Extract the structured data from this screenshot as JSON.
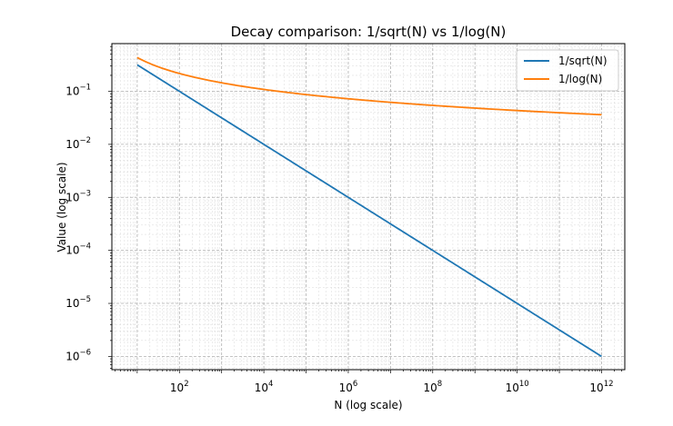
{
  "chart_data": {
    "type": "line",
    "title": "Decay comparison: 1/sqrt(N) vs 1/log(N)",
    "xlabel": "N (log scale)",
    "ylabel": "Value (log scale)",
    "xscale": "log",
    "yscale": "log",
    "xlim_exp": [
      0.4,
      12.55
    ],
    "ylim_exp": [
      -6.25,
      -0.1
    ],
    "x_ticks": [
      {
        "exp": 2,
        "base": "10",
        "sup": "2"
      },
      {
        "exp": 4,
        "base": "10",
        "sup": "4"
      },
      {
        "exp": 6,
        "base": "10",
        "sup": "6"
      },
      {
        "exp": 8,
        "base": "10",
        "sup": "8"
      },
      {
        "exp": 10,
        "base": "10",
        "sup": "10"
      },
      {
        "exp": 12,
        "base": "10",
        "sup": "12"
      }
    ],
    "y_ticks": [
      {
        "exp": -1,
        "base": "10",
        "sup": "−1"
      },
      {
        "exp": -2,
        "base": "10",
        "sup": "−2"
      },
      {
        "exp": -3,
        "base": "10",
        "sup": "−3"
      },
      {
        "exp": -4,
        "base": "10",
        "sup": "−4"
      },
      {
        "exp": -5,
        "base": "10",
        "sup": "−5"
      },
      {
        "exp": -6,
        "base": "10",
        "sup": "−6"
      }
    ],
    "grid": true,
    "legend_position": "top-right",
    "x_range": {
      "start": 10,
      "end": 1000000000000
    },
    "series": [
      {
        "name": "1/sqrt(N)",
        "function": "1/sqrt(N)",
        "color": "#1f77b4"
      },
      {
        "name": "1/log(N)",
        "function": "1/ln(N)",
        "color": "#ff7f0e"
      }
    ]
  }
}
